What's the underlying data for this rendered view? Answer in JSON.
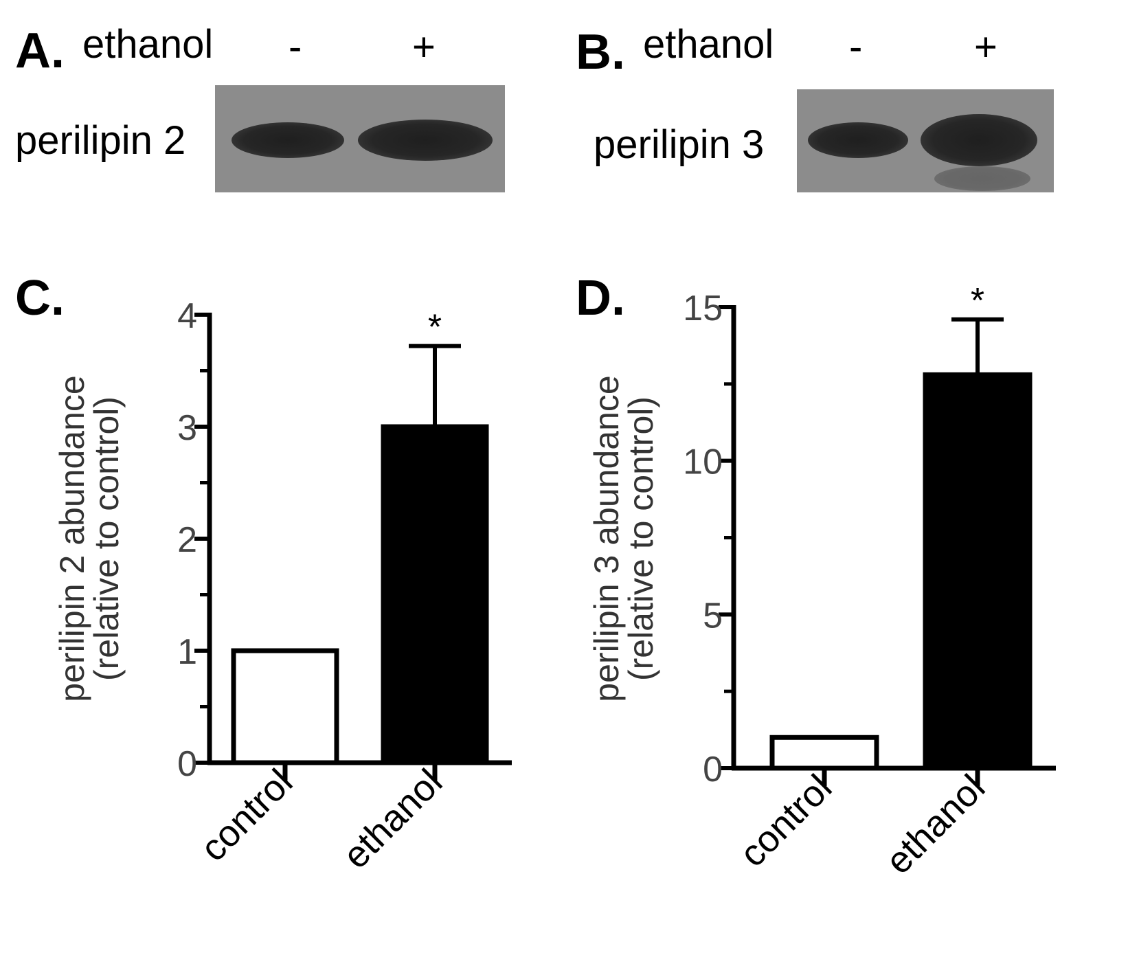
{
  "panels": {
    "A": {
      "letter": "A.",
      "treatment_label": "ethanol",
      "lane_labels": [
        "-",
        "+"
      ],
      "blot_label": "perilipin 2"
    },
    "B": {
      "letter": "B.",
      "treatment_label": "ethanol",
      "lane_labels": [
        "-",
        "+"
      ],
      "blot_label": "perilipin 3"
    },
    "C": {
      "letter": "C."
    },
    "D": {
      "letter": "D."
    }
  },
  "chart_data": [
    {
      "panel": "C",
      "type": "bar",
      "categories": [
        "control",
        "ethanol"
      ],
      "values": [
        1.0,
        3.0
      ],
      "error": [
        0,
        0.72
      ],
      "significance": [
        "",
        "*"
      ],
      "bar_fill": [
        "#ffffff",
        "#000000"
      ],
      "ylabel_line1": "perilipin 2 abundance",
      "ylabel_line2": "(relative to control)",
      "ylim": [
        0,
        4
      ],
      "yticks": [
        0,
        1,
        2,
        3,
        4
      ],
      "ytick_labels": [
        "0",
        "1",
        "2",
        "3",
        "4"
      ],
      "minor_step": 0.5
    },
    {
      "panel": "D",
      "type": "bar",
      "categories": [
        "control",
        "ethanol"
      ],
      "values": [
        1.0,
        12.8
      ],
      "error": [
        0,
        1.8
      ],
      "significance": [
        "",
        "*"
      ],
      "bar_fill": [
        "#ffffff",
        "#000000"
      ],
      "ylabel_line1": "perilipin 3 abundance",
      "ylabel_line2": "(relative to control)",
      "ylim": [
        0,
        15
      ],
      "yticks": [
        0,
        5,
        10,
        15
      ],
      "ytick_labels": [
        "0",
        "5",
        "10",
        "15"
      ],
      "minor_step": 2.5
    }
  ]
}
